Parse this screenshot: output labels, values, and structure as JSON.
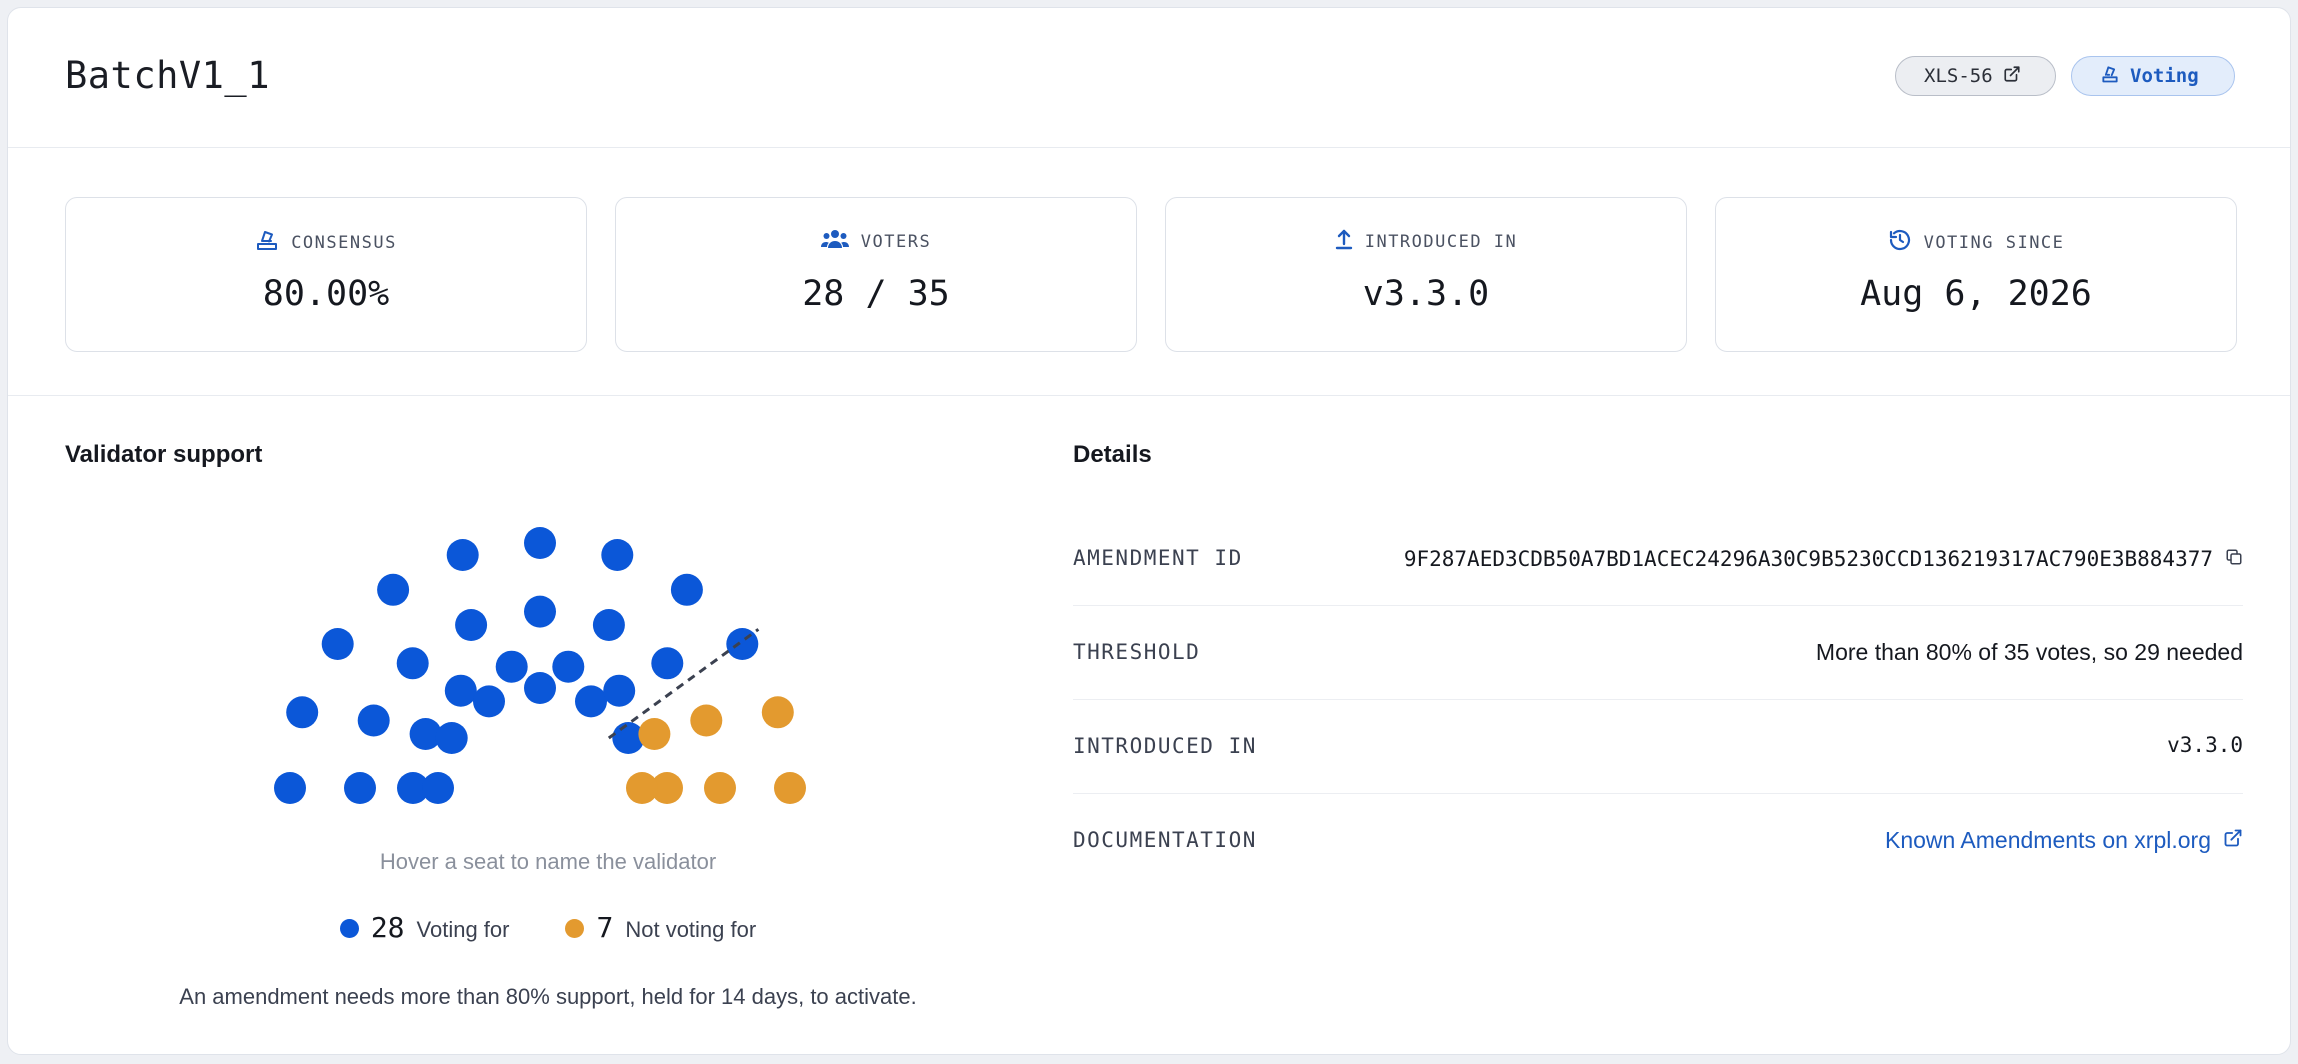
{
  "header": {
    "title": "BatchV1_1",
    "xls_label": "XLS-56",
    "status_label": "Voting"
  },
  "stats": [
    {
      "label": "CONSENSUS",
      "value": "80.00%",
      "icon": "ballot-icon"
    },
    {
      "label": "VOTERS",
      "value": "28 / 35",
      "icon": "users-icon"
    },
    {
      "label": "INTRODUCED IN",
      "value": "v3.3.0",
      "icon": "upload-arrow-icon"
    },
    {
      "label": "VOTING SINCE",
      "value": "Aug 6, 2026",
      "icon": "history-icon"
    }
  ],
  "validator_support": {
    "title": "Validator support",
    "hover_hint": "Hover a seat to name the validator",
    "voting_for_count": "28",
    "voting_for_label": "Voting for",
    "not_voting_count": "7",
    "not_voting_label": "Not voting for",
    "footnote": "An amendment needs more than 80% support, held for 14 days, to activate."
  },
  "details": {
    "title": "Details",
    "amendment_id_label": "AMENDMENT ID",
    "amendment_id": "9F287AED3CDB50A7BD1ACEC24296A30C9B5230CCD136219317AC790E3B884377",
    "threshold_label": "THRESHOLD",
    "threshold_value": "More than 80% of 35 votes, so 29 needed",
    "introduced_label": "INTRODUCED IN",
    "introduced_value": "v3.3.0",
    "documentation_label": "DOCUMENTATION",
    "documentation_link": "Known Amendments on xrpl.org"
  },
  "colors": {
    "voting_for": "#0b57d8",
    "not_voting": "#e39a2f",
    "link": "#1d5bbf"
  }
}
